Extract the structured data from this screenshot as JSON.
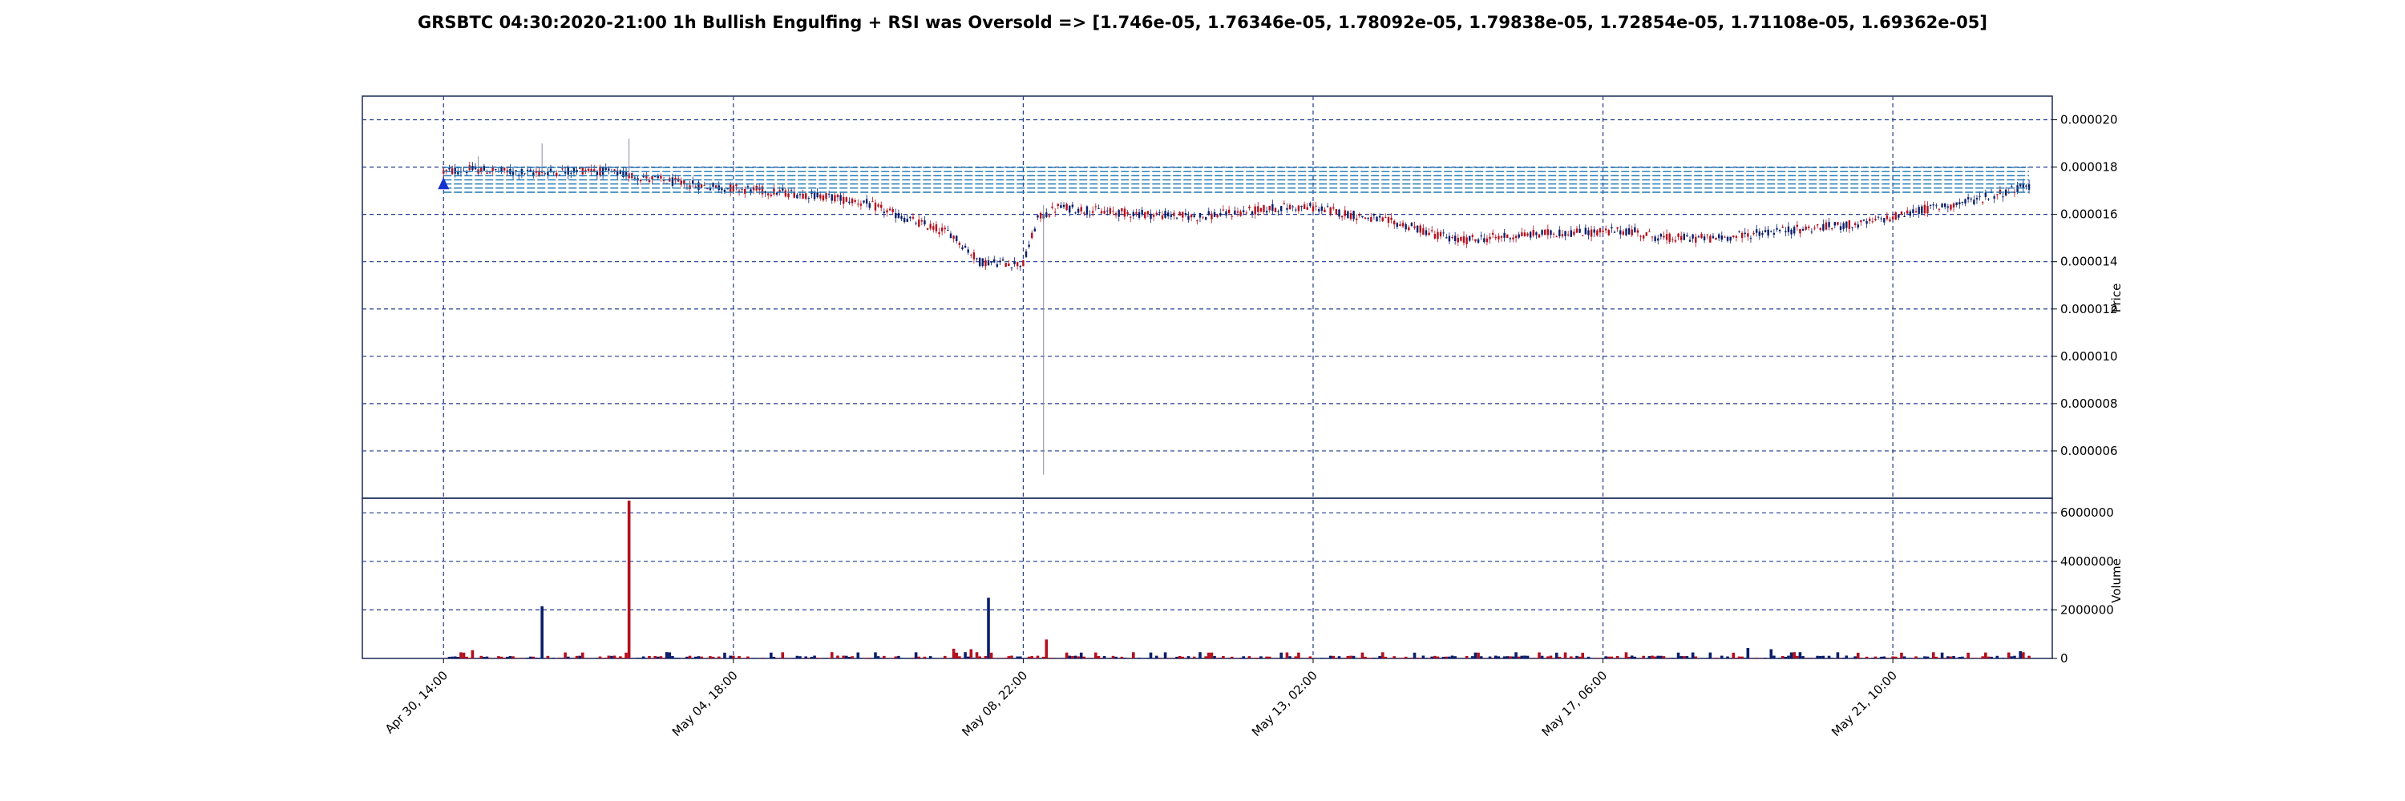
{
  "chart_data": {
    "type": "candlestick",
    "title": "GRSBTC 04:30:2020-21:00 1h Bullish Engulfing + RSI was Oversold => [1.746e-05, 1.76346e-05, 1.78092e-05, 1.79838e-05, 1.72854e-05, 1.71108e-05, 1.69362e-05]",
    "price_axis": {
      "label": "Price",
      "ylim": [
        4e-06,
        2.1e-05
      ],
      "ticks": [
        "0.000006",
        "0.000008",
        "0.000010",
        "0.000012",
        "0.000014",
        "0.000016",
        "0.000018",
        "0.000020"
      ]
    },
    "volume_axis": {
      "label": "Volume",
      "ylim": [
        0,
        6600000
      ],
      "ticks": [
        "0",
        "2000000",
        "4000000",
        "6000000"
      ]
    },
    "x_ticks": [
      "Apr 30, 14:00",
      "May 04, 18:00",
      "May 08, 22:00",
      "May 13, 02:00",
      "May 17, 06:00",
      "May 21, 10:00"
    ],
    "x_tick_hours": [
      0,
      100,
      200,
      300,
      400,
      500
    ],
    "x_range_hours": [
      -28,
      555
    ],
    "grid": true,
    "horizontal_levels": [
      1.746e-05,
      1.76346e-05,
      1.78092e-05,
      1.79838e-05,
      1.72854e-05,
      1.71108e-05,
      1.69362e-05
    ],
    "price_path": [
      [
        0,
        1.78e-05
      ],
      [
        10,
        1.79e-05
      ],
      [
        30,
        1.775e-05
      ],
      [
        50,
        1.79e-05
      ],
      [
        70,
        1.755e-05
      ],
      [
        85,
        1.725e-05
      ],
      [
        100,
        1.71e-05
      ],
      [
        130,
        1.68e-05
      ],
      [
        145,
        1.65e-05
      ],
      [
        160,
        1.58e-05
      ],
      [
        175,
        1.52e-05
      ],
      [
        185,
        1.4e-05
      ],
      [
        200,
        1.39e-05
      ],
      [
        205,
        1.58e-05
      ],
      [
        212,
        1.63e-05
      ],
      [
        230,
        1.61e-05
      ],
      [
        260,
        1.59e-05
      ],
      [
        290,
        1.63e-05
      ],
      [
        300,
        1.63e-05
      ],
      [
        330,
        1.56e-05
      ],
      [
        350,
        1.49e-05
      ],
      [
        380,
        1.52e-05
      ],
      [
        410,
        1.53e-05
      ],
      [
        420,
        1.5e-05
      ],
      [
        440,
        1.5e-05
      ],
      [
        460,
        1.53e-05
      ],
      [
        490,
        1.56e-05
      ],
      [
        510,
        1.62e-05
      ],
      [
        525,
        1.65e-05
      ],
      [
        540,
        1.7e-05
      ],
      [
        547,
        1.72e-05
      ]
    ],
    "price_spikes": [
      {
        "hour": 12,
        "high": 1.845e-05
      },
      {
        "hour": 34,
        "high": 1.9e-05
      },
      {
        "hour": 64,
        "high": 1.92e-05
      },
      {
        "hour": 207,
        "high": 1.64e-05
      },
      {
        "hour": 207,
        "low": 5e-06
      }
    ],
    "volume_spikes": [
      {
        "hour": 34,
        "value": 2150000,
        "color": "#0b1f6b"
      },
      {
        "hour": 64,
        "value": 6500000,
        "color": "#b4101e"
      },
      {
        "hour": 188,
        "value": 2500000,
        "color": "#0b1f6b"
      },
      {
        "hour": 208,
        "value": 780000,
        "color": "#b4101e"
      },
      {
        "hour": 176,
        "value": 400000,
        "color": "#b4101e"
      },
      {
        "hour": 182,
        "value": 380000,
        "color": "#b4101e"
      },
      {
        "hour": 10,
        "value": 340000,
        "color": "#b4101e"
      },
      {
        "hour": 450,
        "value": 430000,
        "color": "#0b1f6b"
      },
      {
        "hour": 458,
        "value": 380000,
        "color": "#0b1f6b"
      },
      {
        "hour": 544,
        "value": 300000,
        "color": "#0b1f6b"
      }
    ],
    "marker": {
      "hour": 0,
      "price": 1.73e-05,
      "shape": "triangle-up"
    },
    "colors": {
      "up": "#0b1f6b",
      "down": "#b4101e",
      "grid": "#1f3a8a",
      "levels": "#1f77b4",
      "marker": "#1432d2"
    }
  }
}
